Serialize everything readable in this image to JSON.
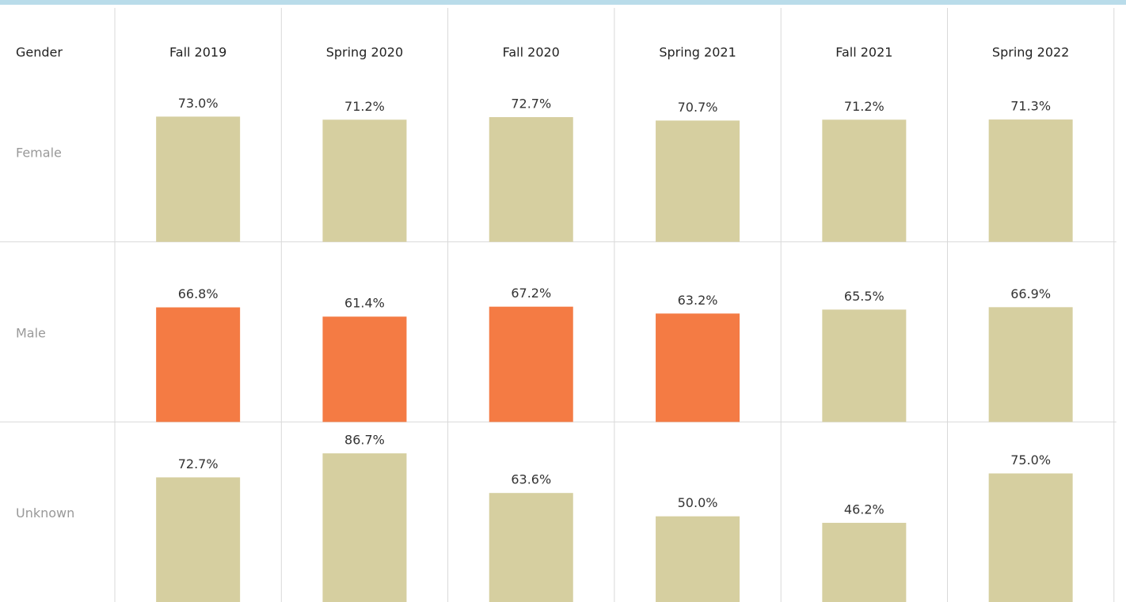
{
  "chart_data": {
    "type": "bar",
    "row_header": "Gender",
    "categories": [
      "Fall 2019",
      "Spring 2020",
      "Fall 2020",
      "Spring 2021",
      "Fall 2021",
      "Spring 2022"
    ],
    "ylim": [
      0,
      105
    ],
    "series": [
      {
        "name": "Female",
        "values": [
          73.0,
          71.2,
          72.7,
          70.7,
          71.2,
          71.3
        ],
        "value_labels": [
          "73.0%",
          "71.2%",
          "72.7%",
          "70.7%",
          "71.2%",
          "71.3%"
        ],
        "colors": [
          "#d6cfa0",
          "#d6cfa0",
          "#d6cfa0",
          "#d6cfa0",
          "#d6cfa0",
          "#d6cfa0"
        ]
      },
      {
        "name": "Male",
        "values": [
          66.8,
          61.4,
          67.2,
          63.2,
          65.5,
          66.9
        ],
        "value_labels": [
          "66.8%",
          "61.4%",
          "67.2%",
          "63.2%",
          "65.5%",
          "66.9%"
        ],
        "colors": [
          "#f47b44",
          "#f47b44",
          "#f47b44",
          "#f47b44",
          "#d6cfa0",
          "#d6cfa0"
        ]
      },
      {
        "name": "Unknown",
        "values": [
          72.7,
          86.7,
          63.6,
          50.0,
          46.2,
          75.0
        ],
        "value_labels": [
          "72.7%",
          "86.7%",
          "63.6%",
          "50.0%",
          "46.2%",
          "75.0%"
        ],
        "colors": [
          "#d6cfa0",
          "#d6cfa0",
          "#d6cfa0",
          "#d6cfa0",
          "#d6cfa0",
          "#d6cfa0"
        ]
      }
    ]
  }
}
